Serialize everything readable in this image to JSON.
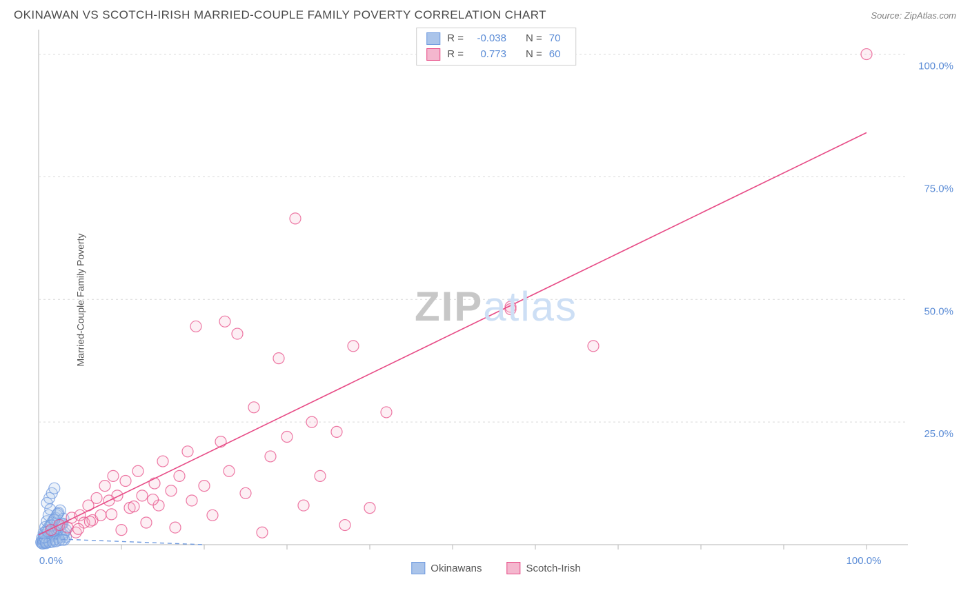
{
  "header": {
    "title": "OKINAWAN VS SCOTCH-IRISH MARRIED-COUPLE FAMILY POVERTY CORRELATION CHART",
    "source": "Source: ZipAtlas.com"
  },
  "ylabel": "Married-Couple Family Poverty",
  "watermark": {
    "part1": "ZIP",
    "part2": "atlas"
  },
  "stats": {
    "series1": {
      "r_label": "R =",
      "r": "-0.038",
      "n_label": "N =",
      "n": "70"
    },
    "series2": {
      "r_label": "R =",
      "r": "0.773",
      "n_label": "N =",
      "n": "60"
    }
  },
  "legend": {
    "series1": "Okinawans",
    "series2": "Scotch-Irish"
  },
  "chart": {
    "type": "scatter",
    "xlim": [
      0,
      105
    ],
    "ylim": [
      0,
      105
    ],
    "xtick_labels": {
      "min": "0.0%",
      "max": "100.0%"
    },
    "ytick_positions": [
      25,
      50,
      75,
      100
    ],
    "ytick_labels": [
      "25.0%",
      "50.0%",
      "75.0%",
      "100.0%"
    ],
    "xtick_positions_minor": [
      10,
      20,
      30,
      40,
      50,
      60,
      70,
      80,
      90,
      100
    ],
    "grid_color": "#d9d9d9",
    "axis_color": "#b5b5b5",
    "background_color": "#ffffff",
    "marker_radius": 8,
    "marker_fill_opacity": 0.22,
    "marker_stroke_opacity": 0.75,
    "series": {
      "okinawans": {
        "color": "#6f9adf",
        "fill": "#aac4ea",
        "points": [
          [
            0.3,
            0.5
          ],
          [
            0.5,
            1.0
          ],
          [
            0.6,
            1.5
          ],
          [
            0.7,
            2.0
          ],
          [
            0.8,
            2.5
          ],
          [
            0.8,
            0.4
          ],
          [
            1.0,
            3.0
          ],
          [
            1.0,
            0.8
          ],
          [
            1.2,
            3.5
          ],
          [
            1.2,
            1.2
          ],
          [
            1.4,
            4.0
          ],
          [
            1.4,
            0.6
          ],
          [
            1.6,
            4.5
          ],
          [
            1.6,
            1.8
          ],
          [
            1.8,
            5.0
          ],
          [
            1.8,
            0.9
          ],
          [
            2.0,
            5.5
          ],
          [
            2.0,
            1.1
          ],
          [
            2.2,
            6.0
          ],
          [
            2.2,
            2.3
          ],
          [
            2.4,
            6.5
          ],
          [
            2.4,
            1.4
          ],
          [
            2.6,
            7.0
          ],
          [
            2.6,
            2.8
          ],
          [
            2.8,
            4.2
          ],
          [
            2.8,
            1.5
          ],
          [
            3.0,
            5.3
          ],
          [
            3.0,
            2.0
          ],
          [
            1.0,
            8.5
          ],
          [
            1.3,
            9.5
          ],
          [
            1.6,
            10.5
          ],
          [
            1.9,
            11.5
          ],
          [
            0.4,
            0.3
          ],
          [
            0.5,
            0.6
          ],
          [
            0.6,
            0.4
          ],
          [
            0.7,
            0.7
          ],
          [
            0.8,
            0.9
          ],
          [
            0.9,
            0.5
          ],
          [
            1.1,
            1.6
          ],
          [
            1.3,
            1.9
          ],
          [
            1.5,
            2.2
          ],
          [
            1.7,
            2.5
          ],
          [
            1.9,
            2.8
          ],
          [
            2.1,
            3.1
          ],
          [
            2.3,
            3.4
          ],
          [
            2.5,
            3.7
          ],
          [
            2.7,
            4.0
          ],
          [
            2.9,
            4.3
          ],
          [
            3.1,
            2.5
          ],
          [
            3.1,
            1.0
          ],
          [
            3.3,
            1.6
          ],
          [
            0.4,
            1.3
          ],
          [
            0.6,
            2.4
          ],
          [
            0.8,
            3.6
          ],
          [
            1.0,
            4.8
          ],
          [
            1.2,
            6.0
          ],
          [
            1.4,
            7.2
          ],
          [
            0.5,
            0.2
          ],
          [
            0.9,
            0.3
          ],
          [
            1.3,
            0.5
          ],
          [
            1.7,
            0.6
          ],
          [
            2.1,
            0.7
          ],
          [
            2.5,
            0.9
          ],
          [
            2.9,
            1.0
          ],
          [
            3.3,
            3.0
          ],
          [
            0.7,
            1.5
          ],
          [
            1.1,
            2.7
          ],
          [
            1.5,
            3.9
          ],
          [
            1.9,
            5.1
          ],
          [
            2.3,
            6.3
          ]
        ],
        "trend": {
          "x1": 0,
          "y1": 1.3,
          "x2": 20,
          "y2": 0.0,
          "dash": "6 5",
          "width": 1.4
        }
      },
      "scotch_irish": {
        "color": "#e74b86",
        "fill": "#f4b7ce",
        "points": [
          [
            1.5,
            3.0
          ],
          [
            2.5,
            4.0
          ],
          [
            3.5,
            3.5
          ],
          [
            4.0,
            5.5
          ],
          [
            4.5,
            2.5
          ],
          [
            5.0,
            6.0
          ],
          [
            5.5,
            4.5
          ],
          [
            6.0,
            8.0
          ],
          [
            6.5,
            5.0
          ],
          [
            7.0,
            9.5
          ],
          [
            7.5,
            6.0
          ],
          [
            8.0,
            12.0
          ],
          [
            8.5,
            9.0
          ],
          [
            9.0,
            14.0
          ],
          [
            9.5,
            10.0
          ],
          [
            10.0,
            3.0
          ],
          [
            10.5,
            13.0
          ],
          [
            11.0,
            7.5
          ],
          [
            12.0,
            15.0
          ],
          [
            12.5,
            10.0
          ],
          [
            13.0,
            4.5
          ],
          [
            14.0,
            12.5
          ],
          [
            14.5,
            8.0
          ],
          [
            15.0,
            17.0
          ],
          [
            16.0,
            11.0
          ],
          [
            16.5,
            3.5
          ],
          [
            17.0,
            14.0
          ],
          [
            18.0,
            19.0
          ],
          [
            18.5,
            9.0
          ],
          [
            19.0,
            44.5
          ],
          [
            20.0,
            12.0
          ],
          [
            21.0,
            6.0
          ],
          [
            22.0,
            21.0
          ],
          [
            22.5,
            45.5
          ],
          [
            23.0,
            15.0
          ],
          [
            24.0,
            43.0
          ],
          [
            25.0,
            10.5
          ],
          [
            26.0,
            28.0
          ],
          [
            27.0,
            2.5
          ],
          [
            28.0,
            18.0
          ],
          [
            29.0,
            38.0
          ],
          [
            30.0,
            22.0
          ],
          [
            31.0,
            66.5
          ],
          [
            32.0,
            8.0
          ],
          [
            33.0,
            25.0
          ],
          [
            34.0,
            14.0
          ],
          [
            36.0,
            23.0
          ],
          [
            37.0,
            4.0
          ],
          [
            38.0,
            40.5
          ],
          [
            40.0,
            7.5
          ],
          [
            42.0,
            27.0
          ],
          [
            57.0,
            48.5
          ],
          [
            57.0,
            48.0
          ],
          [
            67.0,
            40.5
          ],
          [
            100.0,
            100.0
          ],
          [
            4.8,
            3.2
          ],
          [
            6.2,
            4.7
          ],
          [
            8.8,
            6.2
          ],
          [
            11.5,
            7.8
          ],
          [
            13.8,
            9.2
          ]
        ],
        "trend": {
          "x1": 0,
          "y1": 2.0,
          "x2": 100,
          "y2": 84.0,
          "dash": "",
          "width": 1.6
        }
      }
    }
  }
}
